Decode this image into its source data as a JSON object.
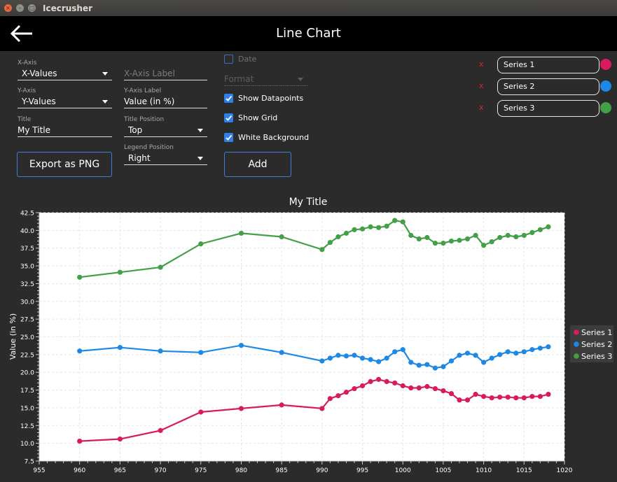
{
  "window": {
    "title": "Icecrusher"
  },
  "header": {
    "title": "Line Chart"
  },
  "form": {
    "x_axis": {
      "label": "X-Axis",
      "value": "X-Values"
    },
    "x_axis_label": {
      "placeholder": "X-Axis Label"
    },
    "y_axis": {
      "label": "Y-Axis",
      "value": "Y-Values"
    },
    "y_axis_label": {
      "label": "Y-Axis Label",
      "value": "Value (in %)"
    },
    "title": {
      "label": "Title",
      "value": "My Title"
    },
    "title_position": {
      "label": "Title Position",
      "value": "Top"
    },
    "legend_position": {
      "label": "Legend Position",
      "value": "Right"
    },
    "date": {
      "label": "Date",
      "checked": false
    },
    "format": {
      "placeholder": "Format"
    },
    "show_datapoints": {
      "label": "Show Datapoints",
      "checked": true
    },
    "show_grid": {
      "label": "Show Grid",
      "checked": true
    },
    "white_background": {
      "label": "White Background",
      "checked": true
    },
    "export_button": "Export as PNG",
    "add_button": "Add"
  },
  "series_list": [
    {
      "remove": "x",
      "name": "Series 1",
      "color": "#d81b60"
    },
    {
      "remove": "x",
      "name": "Series 2",
      "color": "#1e88e5"
    },
    {
      "remove": "x",
      "name": "Series 3",
      "color": "#43a047"
    }
  ],
  "chart_data": {
    "type": "line",
    "title": "My Title",
    "xlabel": "",
    "ylabel": "Value (in %)",
    "xlim": [
      955,
      1020
    ],
    "ylim": [
      7.5,
      42.5
    ],
    "xticks": [
      955,
      960,
      965,
      970,
      975,
      980,
      985,
      990,
      995,
      1000,
      1005,
      1010,
      1015,
      1020
    ],
    "yticks": [
      7.5,
      10.0,
      12.5,
      15.0,
      17.5,
      20.0,
      22.5,
      25.0,
      27.5,
      30.0,
      32.5,
      35.0,
      37.5,
      40.0,
      42.5
    ],
    "grid": true,
    "legend_position": "right",
    "x": [
      960,
      965,
      970,
      975,
      980,
      985,
      990,
      991,
      992,
      993,
      994,
      995,
      996,
      997,
      998,
      999,
      1000,
      1001,
      1002,
      1003,
      1004,
      1005,
      1006,
      1007,
      1008,
      1009,
      1010,
      1011,
      1012,
      1013,
      1014,
      1015,
      1016,
      1017,
      1018
    ],
    "series": [
      {
        "name": "Series 1",
        "color": "#d81b60",
        "values": [
          10.3,
          10.6,
          11.8,
          14.4,
          14.9,
          15.4,
          14.9,
          16.3,
          16.7,
          17.2,
          17.7,
          18.1,
          18.7,
          19.0,
          18.7,
          18.5,
          18.1,
          17.8,
          17.8,
          18.0,
          17.7,
          17.4,
          17.0,
          16.1,
          16.1,
          16.9,
          16.6,
          16.4,
          16.5,
          16.5,
          16.4,
          16.4,
          16.6,
          16.6,
          16.9
        ]
      },
      {
        "name": "Series 2",
        "color": "#1e88e5",
        "values": [
          23.0,
          23.5,
          23.0,
          22.8,
          23.8,
          22.8,
          21.6,
          22.0,
          22.4,
          22.3,
          22.4,
          22.0,
          21.8,
          21.5,
          22.0,
          22.9,
          23.2,
          21.4,
          21.0,
          21.1,
          20.6,
          20.8,
          21.6,
          22.4,
          22.7,
          22.4,
          21.4,
          22.0,
          22.5,
          22.9,
          22.7,
          22.9,
          23.2,
          23.4,
          23.6
        ]
      },
      {
        "name": "Series 3",
        "color": "#43a047",
        "values": [
          33.4,
          34.1,
          34.8,
          38.1,
          39.6,
          39.1,
          37.3,
          38.3,
          39.1,
          39.6,
          40.1,
          40.2,
          40.5,
          40.4,
          40.6,
          41.4,
          41.2,
          39.3,
          38.8,
          39.0,
          38.2,
          38.2,
          38.5,
          38.6,
          38.8,
          39.3,
          37.9,
          38.4,
          39.0,
          39.3,
          39.1,
          39.3,
          39.7,
          40.1,
          40.5
        ]
      }
    ]
  }
}
